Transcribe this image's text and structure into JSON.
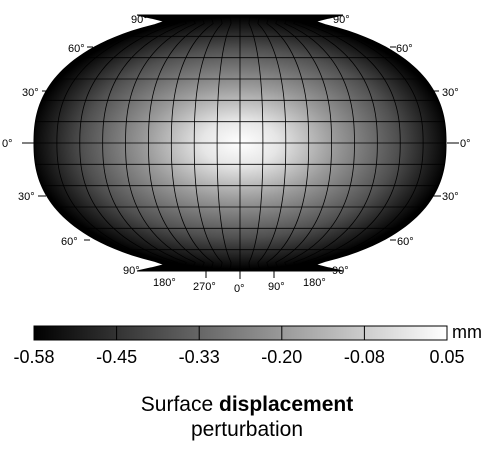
{
  "map": {
    "projection": "pseudo-elliptical (Winkel-Tripel-like) global map",
    "shading": "grayscale, brightest at the center, darkest at the left and right limbs",
    "colors": {
      "outline": "#000000",
      "graticule": "#000000",
      "min_shade": "#000000",
      "max_shade": "#ffffff"
    },
    "latitude_labels": {
      "top_90": "90°",
      "60n": "60°",
      "30n": "30°",
      "equator": "0°",
      "30s": "30°",
      "60s": "60°",
      "bottom_90": "90°"
    },
    "longitude_labels": [
      "180°",
      "270°",
      "0°",
      "90°",
      "180°"
    ]
  },
  "colorbar": {
    "unit": "mm",
    "tick_labels": [
      "-0.58",
      "-0.45",
      "-0.33",
      "-0.20",
      "-0.08",
      "0.05"
    ],
    "range": [
      -0.58,
      0.05
    ]
  },
  "caption": {
    "prefix": "Surface ",
    "bold": "displacement",
    "line2": "perturbation"
  }
}
